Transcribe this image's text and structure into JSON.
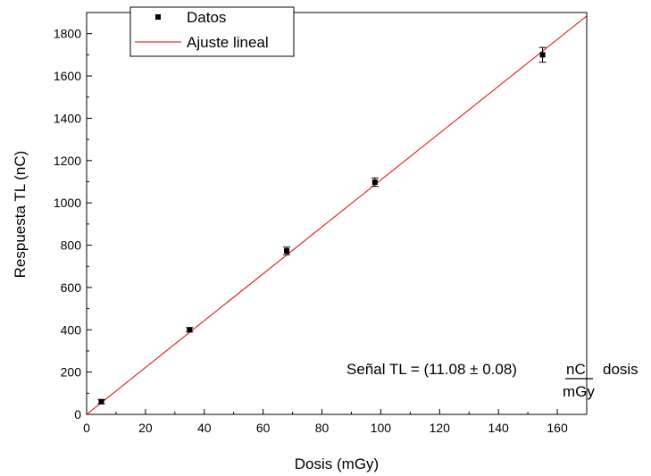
{
  "chart_data": {
    "type": "scatter",
    "xlabel": "Dosis (mGy)",
    "ylabel": "Respuesta TL (nC)",
    "xlim": [
      0,
      170
    ],
    "ylim": [
      0,
      1900
    ],
    "x_ticks": [
      0,
      20,
      40,
      60,
      80,
      100,
      120,
      140,
      160
    ],
    "y_ticks": [
      0,
      200,
      400,
      600,
      800,
      1000,
      1200,
      1400,
      1600,
      1800
    ],
    "x_tick_labels": [
      "0",
      "20",
      "40",
      "60",
      "80",
      "100",
      "120",
      "140",
      "160"
    ],
    "y_tick_labels": [
      "0",
      "200",
      "400",
      "600",
      "800",
      "1000",
      "1200",
      "1400",
      "1600",
      "1800"
    ],
    "grid": false,
    "legend_position": "top-left",
    "series": [
      {
        "name": "Datos",
        "kind": "points-with-error-bars",
        "color": "#000000",
        "marker": "square",
        "x": [
          5,
          35,
          68,
          98,
          155
        ],
        "y": [
          60,
          400,
          773,
          1098,
          1700
        ],
        "y_error": [
          10,
          10,
          18,
          20,
          35
        ]
      },
      {
        "name": "Ajuste lineal",
        "kind": "line",
        "color": "#e00000",
        "slope": 11.08,
        "intercept": 0,
        "x_range": [
          0,
          170
        ]
      }
    ],
    "annotation": {
      "equation": "Señal TL = (11.08 ± 0.08)",
      "unit_numerator": "nC",
      "variable": "dosis",
      "unit_denominator": "mGy"
    }
  }
}
